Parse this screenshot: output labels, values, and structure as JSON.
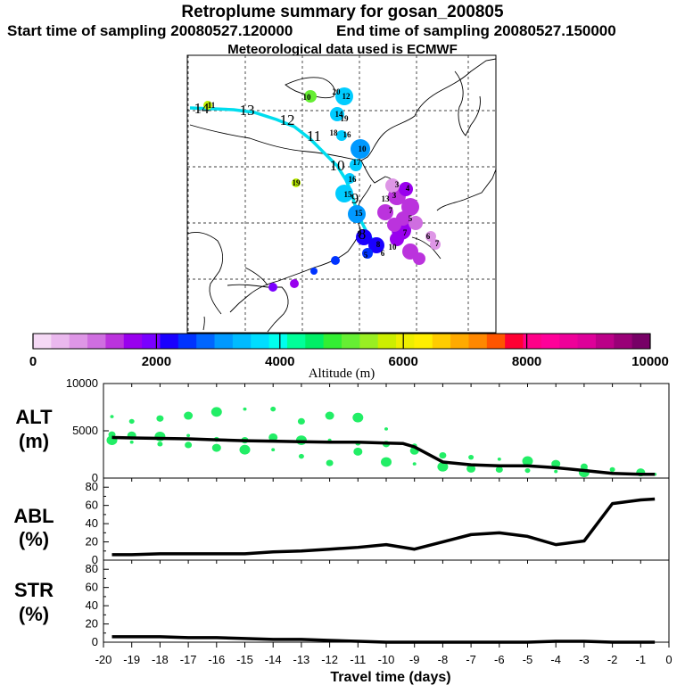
{
  "header": {
    "title": "Retroplume summary for gosan_200805",
    "start": "Start time of sampling 20080527.120000",
    "end": "End time of sampling 20080527.150000",
    "met": "Meteorological data used is ECMWF"
  },
  "colorbar": {
    "ticks": [
      "0",
      "2000",
      "4000",
      "6000",
      "8000",
      "10000"
    ],
    "label": "Altitude (m)",
    "colors": [
      "#f5d9f5",
      "#eab8ee",
      "#de96e6",
      "#cf6ee0",
      "#bb33dd",
      "#9900ee",
      "#7a00ff",
      "#1a00ff",
      "#0033ff",
      "#0066ff",
      "#0099ff",
      "#00bbff",
      "#00ddff",
      "#00ffee",
      "#00ff99",
      "#00ee66",
      "#33ee33",
      "#66ee33",
      "#99ee22",
      "#ccee00",
      "#eeee00",
      "#ffee00",
      "#ffcc00",
      "#ffaa00",
      "#ff8800",
      "#ff5500",
      "#ff0033",
      "#ff0088",
      "#ff0099",
      "#ee0099",
      "#dd0099",
      "#bb0088",
      "#990077",
      "#770066"
    ]
  },
  "map": {
    "backtrack_labels": [
      "14",
      "13",
      "12",
      "11",
      "10",
      "9",
      "8"
    ],
    "cluster_labels": [
      {
        "t": "11",
        "c": "#bbee00"
      },
      {
        "t": "20",
        "c": "#00ee99"
      },
      {
        "t": "10",
        "c": "#66ee33"
      },
      {
        "t": "12",
        "c": "#00ccff"
      },
      {
        "t": "14",
        "c": "#00ccff"
      },
      {
        "t": "19",
        "c": "#00ccff"
      },
      {
        "t": "18",
        "c": "#00ccff"
      },
      {
        "t": "16",
        "c": "#00ccff"
      },
      {
        "t": "10",
        "c": "#0099ff"
      },
      {
        "t": "17",
        "c": "#00ccff"
      },
      {
        "t": "19",
        "c": "#bbee00"
      },
      {
        "t": "16",
        "c": "#00ccff"
      },
      {
        "t": "15",
        "c": "#00ccff"
      },
      {
        "t": "15",
        "c": "#0099ff"
      },
      {
        "t": "9",
        "c": "#1a00ff"
      },
      {
        "t": "8",
        "c": "#1a00ff"
      },
      {
        "t": "6",
        "c": "#0033ff"
      },
      {
        "t": "5",
        "c": "#0033ff"
      },
      {
        "t": "13",
        "c": "#7a00ff"
      },
      {
        "t": "7",
        "c": "#9900ee"
      },
      {
        "t": "4",
        "c": "#9900ee"
      },
      {
        "t": "3",
        "c": "#bb33dd"
      },
      {
        "t": "6",
        "c": "#de96e6"
      },
      {
        "t": "7",
        "c": "#de96e6"
      },
      {
        "t": "10",
        "c": "#bb33dd"
      },
      {
        "t": "7",
        "c": "#bb33dd"
      },
      {
        "t": "5",
        "c": "#bb33dd"
      },
      {
        "t": "3",
        "c": "#cf6ee0"
      }
    ]
  },
  "chart_data": [
    {
      "type": "line",
      "panel": "ALT",
      "ylabel": "ALT (m)",
      "xlabel": "Travel time (days)",
      "xlim": [
        -20,
        0
      ],
      "ylim": [
        0,
        10000
      ],
      "yticks": [
        "10000",
        "5000",
        "0"
      ],
      "x": [
        -19.7,
        -19,
        -18,
        -17,
        -16,
        -15,
        -14,
        -13,
        -12,
        -11,
        -10,
        -9.4,
        -9,
        -8,
        -7,
        -6,
        -5,
        -4,
        -3,
        -2,
        -1,
        -0.5
      ],
      "values": [
        4300,
        4250,
        4200,
        4150,
        4050,
        3950,
        3900,
        3850,
        3800,
        3800,
        3700,
        3650,
        3300,
        1700,
        1400,
        1300,
        1300,
        1100,
        800,
        500,
        400,
        400
      ],
      "spread_points": {
        "x": [
          -19.7,
          -19.7,
          -19.7,
          -19,
          -19,
          -19,
          -18,
          -18,
          -18,
          -17,
          -17,
          -17,
          -16,
          -16,
          -16,
          -15,
          -15,
          -15,
          -14,
          -14,
          -14,
          -13,
          -13,
          -13,
          -12,
          -12,
          -12,
          -11,
          -11,
          -11,
          -10,
          -10,
          -10,
          -9,
          -9,
          -9,
          -8,
          -8,
          -7,
          -7,
          -6,
          -6,
          -5,
          -5,
          -4,
          -4,
          -3,
          -3,
          -2,
          -1,
          -0.5
        ],
        "y": [
          6500,
          4600,
          4000,
          6000,
          4500,
          3800,
          6300,
          4400,
          3600,
          6600,
          4500,
          3500,
          7000,
          4100,
          3200,
          7300,
          4000,
          3000,
          7300,
          4300,
          3000,
          6000,
          4000,
          2300,
          6600,
          4000,
          1600,
          6400,
          3700,
          2800,
          5200,
          3600,
          1700,
          3400,
          2900,
          1500,
          2400,
          1200,
          2200,
          1000,
          2000,
          900,
          1800,
          800,
          1500,
          700,
          1200,
          600,
          900,
          600,
          400
        ]
      }
    },
    {
      "type": "line",
      "panel": "ABL",
      "ylabel": "ABL (%)",
      "ylim": [
        0,
        90
      ],
      "yticks": [
        "80",
        "60",
        "40",
        "20",
        "0"
      ],
      "x": [
        -19.7,
        -19,
        -18,
        -17,
        -16,
        -15,
        -14,
        -13,
        -12,
        -11,
        -10,
        -9,
        -8,
        -7,
        -6,
        -5,
        -4,
        -3,
        -2,
        -1,
        -0.5
      ],
      "values": [
        6,
        6,
        7,
        7,
        7,
        7,
        9,
        10,
        12,
        14,
        17,
        12,
        20,
        28,
        30,
        26,
        17,
        21,
        62,
        66,
        67
      ]
    },
    {
      "type": "line",
      "panel": "STR",
      "ylabel": "STR (%)",
      "ylim": [
        0,
        90
      ],
      "yticks": [
        "80",
        "60",
        "40",
        "20",
        "0"
      ],
      "x": [
        -19.7,
        -19,
        -18,
        -17,
        -16,
        -15,
        -14,
        -13,
        -12,
        -11,
        -10,
        -9,
        -8,
        -7,
        -6,
        -5,
        -4,
        -3,
        -2,
        -1,
        -0.5
      ],
      "values": [
        6,
        6,
        6,
        5,
        5,
        4,
        3,
        3,
        2,
        1,
        0,
        0,
        0,
        0,
        0,
        0,
        1,
        1,
        0,
        0,
        0
      ]
    }
  ],
  "xaxis": {
    "ticks": [
      "-20",
      "-19",
      "-18",
      "-17",
      "-16",
      "-15",
      "-14",
      "-13",
      "-12",
      "-11",
      "-10",
      "-9",
      "-8",
      "-7",
      "-6",
      "-5",
      "-4",
      "-3",
      "-2",
      "-1",
      "0"
    ],
    "label": "Travel time (days)"
  },
  "panel_labels": {
    "alt_top": "ALT",
    "alt_unit": "(m)",
    "abl_top": "ABL",
    "abl_unit": "(%)",
    "str_top": "STR",
    "str_unit": "(%)"
  }
}
